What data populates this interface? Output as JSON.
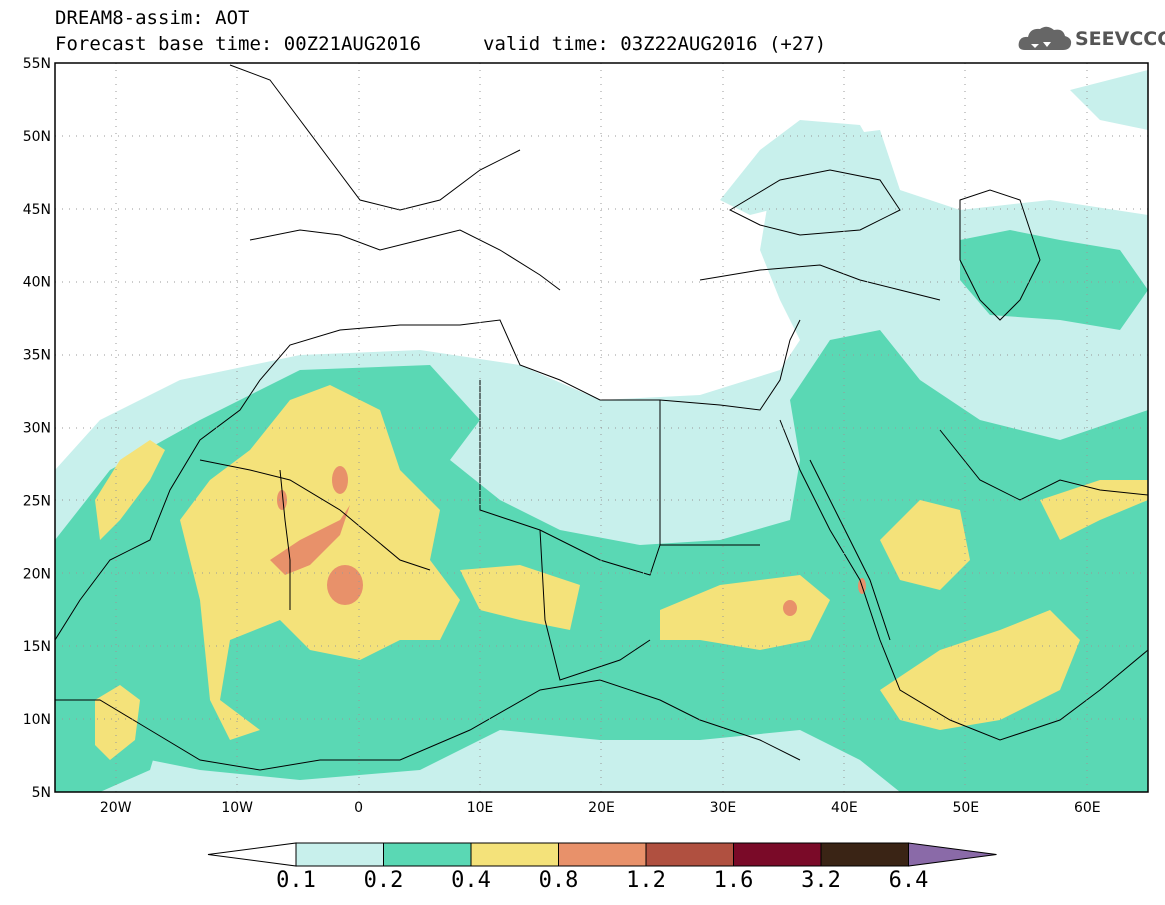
{
  "header": {
    "title": "DREAM8-assim: AOT",
    "base_time": "Forecast base time: 00Z21AUG2016",
    "valid_time": "valid time: 03Z22AUG2016 (+27)"
  },
  "logo": {
    "text": "SEEVCCC",
    "icon": "cloud-icon"
  },
  "axes": {
    "lat_labels": [
      "55N",
      "50N",
      "45N",
      "40N",
      "35N",
      "30N",
      "25N",
      "20N",
      "15N",
      "10N",
      "5N"
    ],
    "lon_labels": [
      "20W",
      "10W",
      "0",
      "10E",
      "20E",
      "30E",
      "40E",
      "50E",
      "60E"
    ],
    "lat_range": [
      5,
      55
    ],
    "lon_range": [
      -25,
      65
    ]
  },
  "colorbar": {
    "labels": [
      "0.1",
      "0.2",
      "0.4",
      "0.8",
      "1.2",
      "1.6",
      "3.2",
      "6.4"
    ],
    "colors": [
      "#c8f0ec",
      "#5ad8b4",
      "#f4e27a",
      "#e8916a",
      "#b05040",
      "#7a0a28",
      "#3a2415",
      "#8a6aa8"
    ]
  },
  "legend_colors": {
    "light": "#c8f0ec",
    "medium": "#5ad8b4",
    "yellow": "#f4e27a",
    "orange": "#e8916a"
  }
}
